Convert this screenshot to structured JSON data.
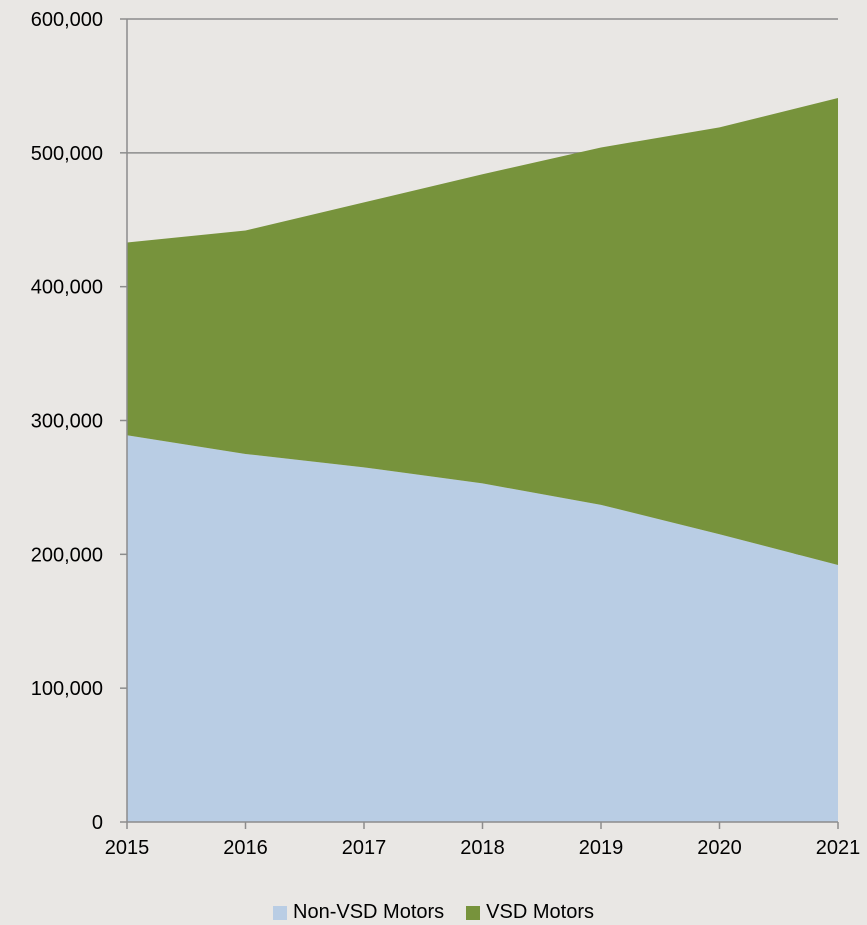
{
  "chart_data": {
    "type": "area",
    "stacked": true,
    "title": "",
    "xlabel": "",
    "ylabel": "",
    "x": [
      "2015",
      "2016",
      "2017",
      "2018",
      "2019",
      "2020",
      "2021"
    ],
    "ylim": [
      0,
      600000
    ],
    "yticks": [
      0,
      100000,
      200000,
      300000,
      400000,
      500000,
      600000
    ],
    "ytick_labels": [
      "0",
      "100,000",
      "200,000",
      "300,000",
      "400,000",
      "500,000",
      "600,000"
    ],
    "grid": "horizontal",
    "legend_position": "bottom",
    "series": [
      {
        "name": "Non-VSD Motors",
        "color": "#b9cde4",
        "values": [
          289000,
          275000,
          265000,
          253000,
          237000,
          215000,
          192000
        ]
      },
      {
        "name": "VSD Motors",
        "color": "#77933c",
        "values": [
          144000,
          167000,
          198000,
          231000,
          267000,
          304000,
          349000
        ]
      }
    ]
  }
}
